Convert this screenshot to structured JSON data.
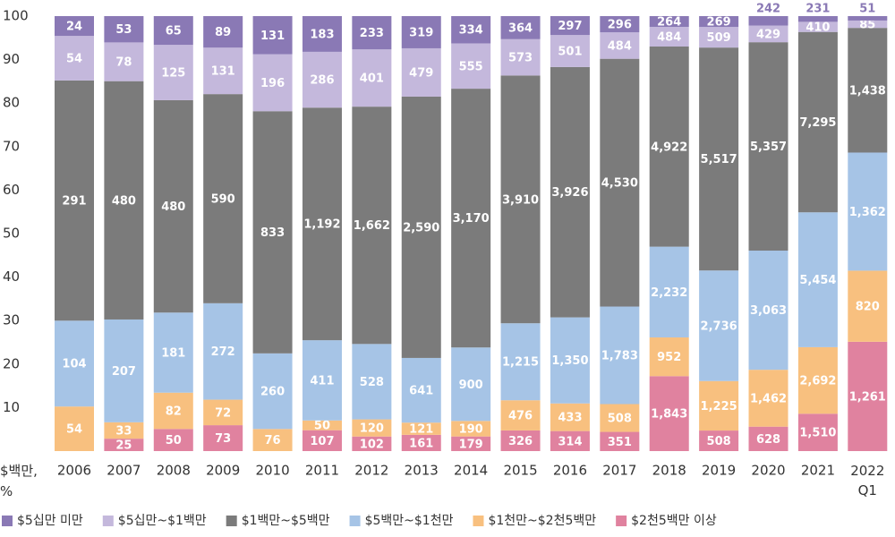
{
  "chart_data": {
    "type": "bar",
    "stacking": "percent",
    "axis_label": "$백만, %",
    "categories": [
      "2006",
      "2007",
      "2008",
      "2009",
      "2010",
      "2011",
      "2012",
      "2013",
      "2014",
      "2015",
      "2016",
      "2017",
      "2018",
      "2019",
      "2020",
      "2021",
      "2022 Q1"
    ],
    "ylim": [
      0,
      100
    ],
    "yticks": [
      10,
      20,
      30,
      40,
      50,
      60,
      70,
      80,
      90,
      100
    ],
    "series": [
      {
        "name": "$2천5백만 이상",
        "color": "#e0829f",
        "values": [
          null,
          25,
          50,
          73,
          null,
          107,
          102,
          161,
          179,
          326,
          314,
          351,
          1843,
          508,
          628,
          1510,
          1261
        ],
        "value_labels": [
          null,
          "25",
          "50",
          "73",
          null,
          "107",
          "102",
          "161",
          "179",
          "326",
          "314",
          "351",
          "1,843",
          "508",
          "628",
          "1,510",
          "1,261"
        ]
      },
      {
        "name": "$1천만~$2천5백만",
        "color": "#f8c07f",
        "values": [
          54,
          33,
          82,
          72,
          76,
          50,
          120,
          121,
          190,
          476,
          433,
          508,
          952,
          1225,
          1462,
          2692,
          820
        ],
        "value_labels": [
          "54",
          "33",
          "82",
          "72",
          "76",
          "50",
          "120",
          "121",
          "190",
          "476",
          "433",
          "508",
          "952",
          "1,225",
          "1,462",
          "2,692",
          "820"
        ]
      },
      {
        "name": "$5백만~$1천만",
        "color": "#a6c4e6",
        "values": [
          104,
          207,
          181,
          272,
          260,
          411,
          528,
          641,
          900,
          1215,
          1350,
          1783,
          2232,
          2736,
          3063,
          5454,
          1362
        ],
        "value_labels": [
          "104",
          "207",
          "181",
          "272",
          "260",
          "411",
          "528",
          "641",
          "900",
          "1,215",
          "1,350",
          "1,783",
          "2,232",
          "2,736",
          "3,063",
          "5,454",
          "1,362"
        ]
      },
      {
        "name": "$1백만~$5백만",
        "color": "#7b7b7b",
        "values": [
          291,
          480,
          480,
          590,
          833,
          1192,
          1662,
          2590,
          3170,
          3910,
          3926,
          4530,
          4922,
          5517,
          5357,
          7295,
          1438
        ],
        "value_labels": [
          "291",
          "480",
          "480",
          "590",
          "833",
          "1,192",
          "1,662",
          "2,590",
          "3,170",
          "3,910",
          "3,926",
          "4,530",
          "4,922",
          "5,517",
          "5,357",
          "7,295",
          "1,438"
        ]
      },
      {
        "name": "$5십만~$1백만",
        "color": "#c4b8dc",
        "values": [
          54,
          78,
          125,
          131,
          196,
          286,
          401,
          479,
          555,
          573,
          501,
          484,
          484,
          509,
          429,
          410,
          85
        ],
        "value_labels": [
          "54",
          "78",
          "125",
          "131",
          "196",
          "286",
          "401",
          "479",
          "555",
          "573",
          "501",
          "484",
          "484",
          "509",
          "429",
          "410",
          "85"
        ]
      },
      {
        "name": "$5십만 미만",
        "color": "#8a79b5",
        "values": [
          24,
          53,
          65,
          89,
          131,
          183,
          233,
          319,
          334,
          364,
          297,
          296,
          264,
          269,
          242,
          231,
          51
        ],
        "value_labels": [
          "24",
          "53",
          "65",
          "89",
          "131",
          "183",
          "233",
          "319",
          "334",
          "364",
          "297",
          "296",
          "264",
          "269",
          "242",
          "231",
          "51"
        ]
      }
    ],
    "legend": "bottom-left"
  }
}
